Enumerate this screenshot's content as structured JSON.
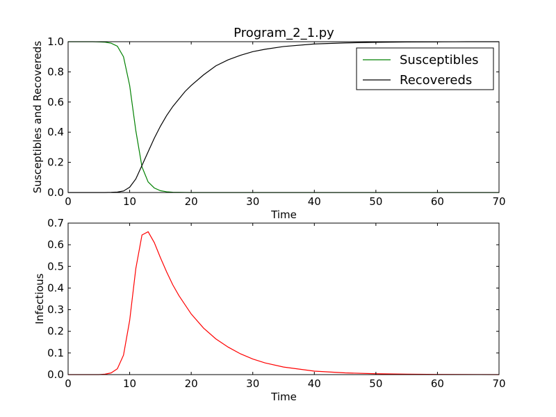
{
  "chart_data": [
    {
      "type": "line",
      "title": "Program_2_1.py",
      "xlabel": "Time",
      "ylabel": "Susceptibles and Recovereds",
      "xlim": [
        0,
        70
      ],
      "ylim": [
        0,
        1.0
      ],
      "xticks": [
        "0",
        "10",
        "20",
        "30",
        "40",
        "50",
        "60",
        "70"
      ],
      "yticks": [
        "0.0",
        "0.2",
        "0.4",
        "0.6",
        "0.8",
        "1.0"
      ],
      "grid": false,
      "legend_position": "top-right",
      "series": [
        {
          "name": "Susceptibles",
          "color": "#008000",
          "x": [
            0,
            1,
            2,
            3,
            4,
            5,
            6,
            7,
            8,
            9,
            10,
            11,
            12,
            13,
            14,
            15,
            16,
            17,
            18,
            20,
            25,
            30,
            40,
            50,
            60,
            70
          ],
          "y": [
            1.0,
            1.0,
            1.0,
            1.0,
            1.0,
            0.999,
            0.997,
            0.99,
            0.97,
            0.9,
            0.71,
            0.41,
            0.17,
            0.07,
            0.03,
            0.012,
            0.005,
            0.002,
            0.001,
            0.0,
            0.0,
            0.0,
            0.0,
            0.0,
            0.0,
            0.0
          ]
        },
        {
          "name": "Recovereds",
          "color": "#000000",
          "x": [
            0,
            6,
            7,
            8,
            9,
            10,
            11,
            12,
            13,
            14,
            15,
            16,
            17,
            18,
            19,
            20,
            22,
            24,
            26,
            28,
            30,
            32,
            35,
            40,
            45,
            50,
            55,
            60,
            65,
            70
          ],
          "y": [
            0.0,
            0.0,
            0.001,
            0.003,
            0.01,
            0.035,
            0.09,
            0.18,
            0.27,
            0.36,
            0.44,
            0.51,
            0.57,
            0.62,
            0.67,
            0.71,
            0.78,
            0.84,
            0.88,
            0.91,
            0.934,
            0.95,
            0.968,
            0.985,
            0.992,
            0.996,
            0.998,
            0.999,
            1.0,
            1.0
          ]
        }
      ]
    },
    {
      "type": "line",
      "title": "",
      "xlabel": "Time",
      "ylabel": "Infectious",
      "xlim": [
        0,
        70
      ],
      "ylim": [
        0,
        0.7
      ],
      "xticks": [
        "0",
        "10",
        "20",
        "30",
        "40",
        "50",
        "60",
        "70"
      ],
      "yticks": [
        "0.0",
        "0.1",
        "0.2",
        "0.3",
        "0.4",
        "0.5",
        "0.6",
        "0.7"
      ],
      "grid": false,
      "series": [
        {
          "color": "#ff0000",
          "x": [
            0,
            5,
            6,
            7,
            8,
            9,
            10,
            11,
            12,
            13,
            14,
            15,
            16,
            17,
            18,
            20,
            22,
            24,
            26,
            28,
            30,
            32,
            35,
            40,
            45,
            50,
            55,
            60,
            70
          ],
          "y": [
            0.0,
            0.0,
            0.002,
            0.008,
            0.027,
            0.09,
            0.25,
            0.49,
            0.645,
            0.66,
            0.61,
            0.54,
            0.475,
            0.415,
            0.365,
            0.28,
            0.215,
            0.165,
            0.127,
            0.096,
            0.072,
            0.054,
            0.035,
            0.016,
            0.008,
            0.004,
            0.002,
            0.001,
            0.0
          ]
        }
      ]
    }
  ]
}
